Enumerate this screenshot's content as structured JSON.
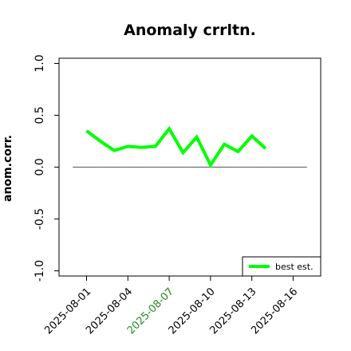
{
  "chart_data": {
    "type": "line",
    "title": "Anomaly crrltn.",
    "ylabel": "anom.corr.",
    "xlabel": "",
    "ylim": [
      -1.05,
      1.05
    ],
    "yticks": [
      -1.0,
      -0.5,
      0.0,
      0.5,
      1.0
    ],
    "ytick_labels": [
      "-1.0",
      "-0.5",
      "0.0",
      "0.5",
      "1.0"
    ],
    "x_start": "2025-07-30",
    "x_end": "2025-08-18",
    "xticks": [
      "2025-08-01",
      "2025-08-04",
      "2025-08-07",
      "2025-08-10",
      "2025-08-13",
      "2025-08-16"
    ],
    "highlight_tick": "2025-08-07",
    "highlight_color": "#228B22",
    "reference_line": 0.0,
    "reference_line_range": [
      "2025-07-31",
      "2025-08-17"
    ],
    "series": [
      {
        "name": "best est.",
        "color": "#00ff00",
        "x": [
          "2025-08-01",
          "2025-08-02",
          "2025-08-03",
          "2025-08-04",
          "2025-08-05",
          "2025-08-06",
          "2025-08-07",
          "2025-08-08",
          "2025-08-09",
          "2025-08-10",
          "2025-08-11",
          "2025-08-12",
          "2025-08-13",
          "2025-08-14"
        ],
        "values": [
          0.35,
          0.25,
          0.16,
          0.2,
          0.19,
          0.2,
          0.37,
          0.14,
          0.29,
          0.02,
          0.22,
          0.15,
          0.3,
          0.18
        ]
      }
    ],
    "legend_position": "bottom-right"
  }
}
